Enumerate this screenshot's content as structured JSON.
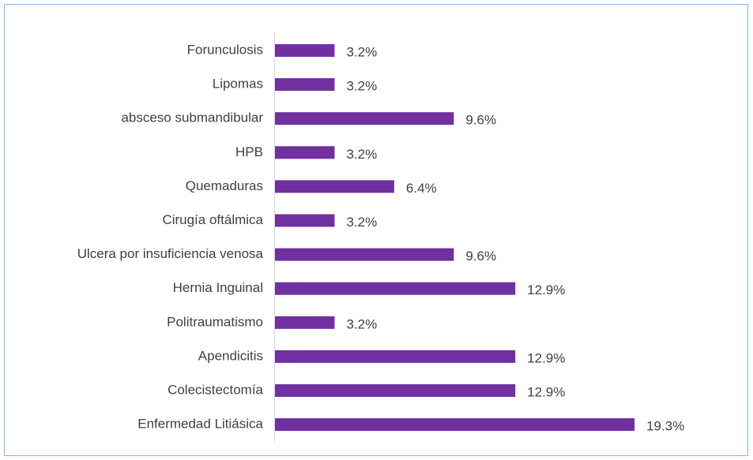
{
  "chart_data": {
    "type": "bar",
    "orientation": "horizontal",
    "categories": [
      "Forunculosis",
      "Lipomas",
      "absceso submandibular",
      "HPB",
      "Quemaduras",
      "Cirugía oftálmica",
      "Ulcera por insuficiencia venosa",
      "Hernia Inguinal",
      "Politraumatismo",
      "Apendicitis",
      "Colecistectomía",
      "Enfermedad Litiásica"
    ],
    "values": [
      3.2,
      3.2,
      9.6,
      3.2,
      6.4,
      3.2,
      9.6,
      12.9,
      3.2,
      12.9,
      12.9,
      19.3
    ],
    "value_labels": [
      "3.2%",
      "3.2%",
      "9.6%",
      "3.2%",
      "6.4%",
      "3.2%",
      "9.6%",
      "12.9%",
      "3.2%",
      "12.9%",
      "12.9%",
      "19.3%"
    ],
    "color": "#7030a0"
  }
}
